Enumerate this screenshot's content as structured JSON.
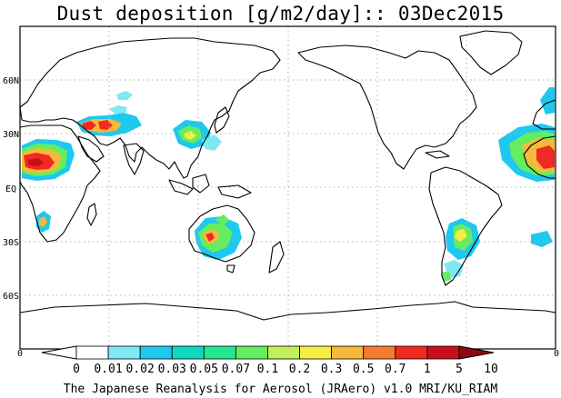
{
  "title": "Dust deposition [g/m2/day]:: 03Dec2015",
  "footer": "The Japanese Reanalysis for Aerosol (JRAero) v1.0 MRI/KU_RIAM",
  "lat_labels": [
    "60N",
    "30N",
    "EQ",
    "30S",
    "60S"
  ],
  "colorbar": {
    "labels": [
      "0",
      "0.01",
      "0.02",
      "0.03",
      "0.05",
      "0.07",
      "0.1",
      "0.2",
      "0.3",
      "0.5",
      "0.7",
      "1",
      "5",
      "10"
    ],
    "colors": [
      "#ffffff",
      "#ffffff",
      "#7fe8f5",
      "#1ec8ee",
      "#10d8c0",
      "#24e690",
      "#64ee5e",
      "#c2f05a",
      "#f5ec44",
      "#f7b83c",
      "#f57c30",
      "#ee2a22",
      "#c8101a",
      "#8e0a10"
    ],
    "left_end_label": "0",
    "right_end_label": "0"
  }
}
